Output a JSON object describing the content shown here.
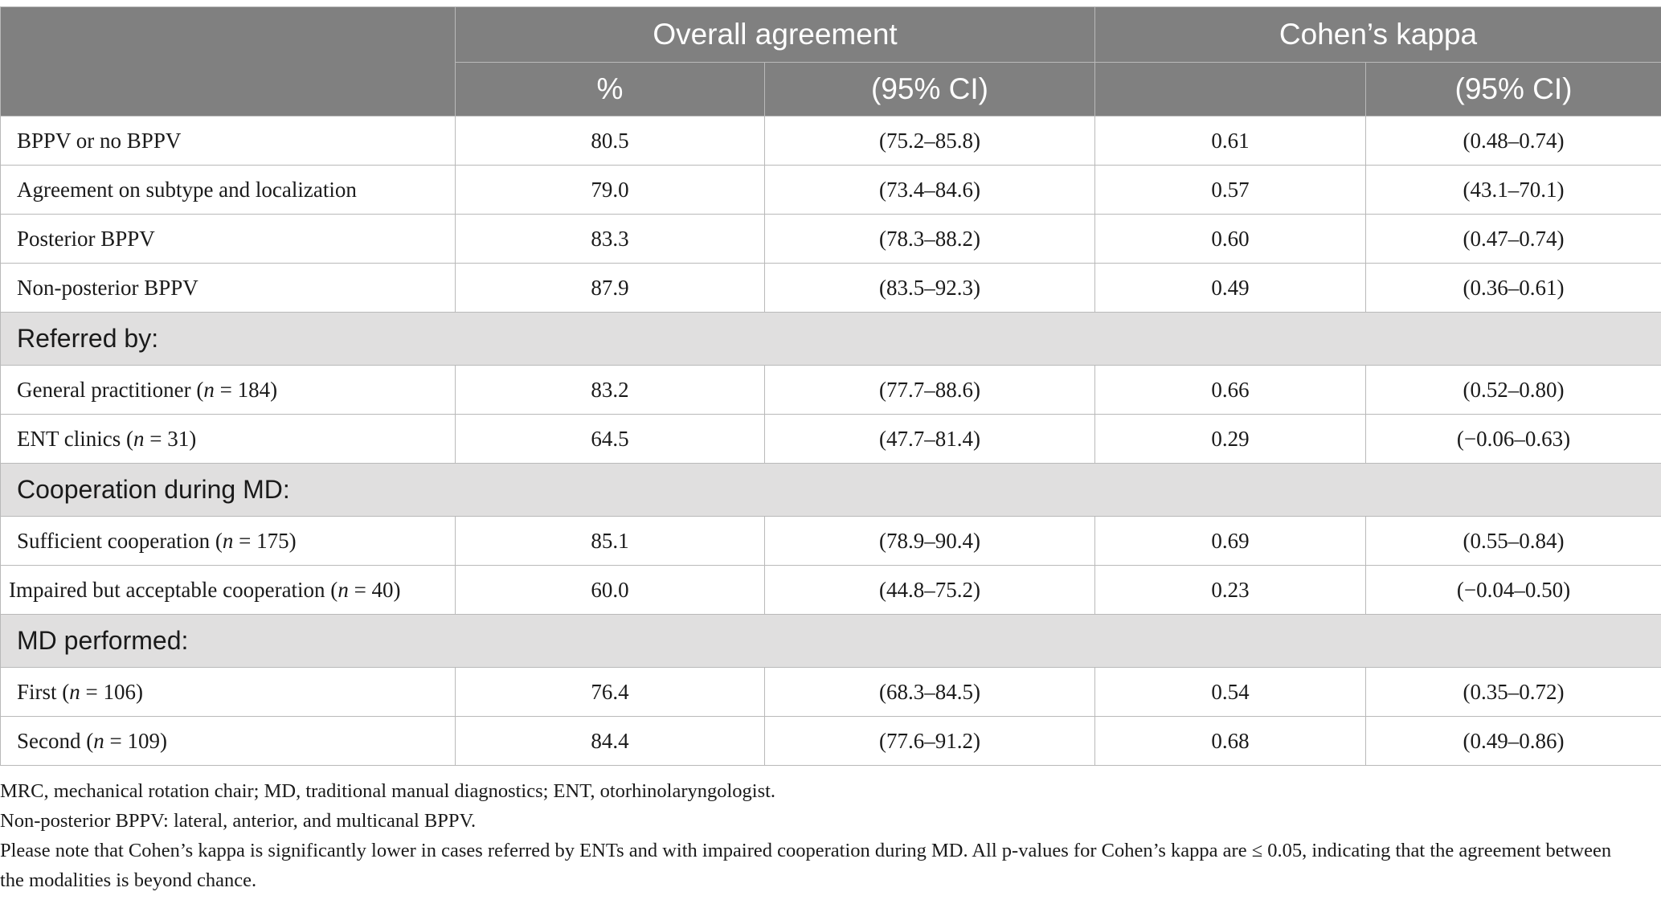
{
  "header": {
    "col_overall": "Overall agreement",
    "col_kappa": "Cohen’s kappa",
    "sub_percent": "%",
    "sub_ci_overall": "(95% CI)",
    "sub_kappa_value": "",
    "sub_ci_kappa": "(95% CI)"
  },
  "rows": [
    {
      "label": "BPPV or no BPPV",
      "percent": "80.5",
      "ci": "(75.2–85.8)",
      "kappa": "0.61",
      "kappa_ci": "(0.48–0.74)"
    },
    {
      "label": "Agreement on subtype and localization",
      "percent": "79.0",
      "ci": "(73.4–84.6)",
      "kappa": "0.57",
      "kappa_ci": "(43.1–70.1)"
    },
    {
      "label": "Posterior BPPV",
      "percent": "83.3",
      "ci": "(78.3–88.2)",
      "kappa": "0.60",
      "kappa_ci": "(0.47–0.74)"
    },
    {
      "label": "Non-posterior BPPV",
      "percent": "87.9",
      "ci": "(83.5–92.3)",
      "kappa": "0.49",
      "kappa_ci": "(0.36–0.61)"
    }
  ],
  "sections": [
    {
      "title": "Referred by:",
      "rows": [
        {
          "label": "General practitioner (",
          "n_sym": "n",
          "n_val": " = 184)",
          "percent": "83.2",
          "ci": "(77.7–88.6)",
          "kappa": "0.66",
          "kappa_ci": "(0.52–0.80)"
        },
        {
          "label": "ENT clinics (",
          "n_sym": "n",
          "n_val": " = 31)",
          "percent": "64.5",
          "ci": "(47.7–81.4)",
          "kappa": "0.29",
          "kappa_ci": "(−0.06–0.63)"
        }
      ]
    },
    {
      "title": "Cooperation during MD:",
      "rows": [
        {
          "label": "Sufficient cooperation (",
          "n_sym": "n",
          "n_val": " = 175)",
          "percent": "85.1",
          "ci": "(78.9–90.4)",
          "kappa": "0.69",
          "kappa_ci": "(0.55–0.84)"
        },
        {
          "label": "Impaired but acceptable cooperation (",
          "n_sym": "n",
          "n_val": " = 40)",
          "percent": "60.0",
          "ci": "(44.8–75.2)",
          "kappa": "0.23",
          "kappa_ci": "(−0.04–0.50)"
        }
      ]
    },
    {
      "title": "MD performed:",
      "rows": [
        {
          "label": "First (",
          "n_sym": "n",
          "n_val": " = 106)",
          "percent": "76.4",
          "ci": "(68.3–84.5)",
          "kappa": "0.54",
          "kappa_ci": "(0.35–0.72)"
        },
        {
          "label": "Second (",
          "n_sym": "n",
          "n_val": " = 109)",
          "percent": "84.4",
          "ci": "(77.6–91.2)",
          "kappa": "0.68",
          "kappa_ci": "(0.49–0.86)"
        }
      ]
    }
  ],
  "notes": [
    "MRC, mechanical rotation chair; MD, traditional manual diagnostics; ENT, otorhinolaryngologist.",
    "Non-posterior BPPV: lateral, anterior, and multicanal BPPV.",
    "Please note that Cohen’s kappa is significantly lower in cases referred by ENTs and with impaired cooperation during MD. All p-values for Cohen’s kappa are ≤ 0.05, indicating that the agreement between the modalities is beyond chance."
  ]
}
